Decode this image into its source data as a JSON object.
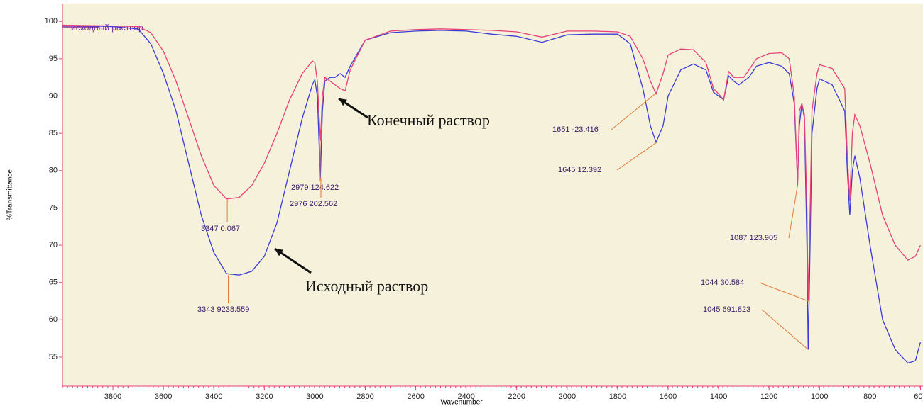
{
  "chart_data": {
    "type": "line",
    "xlabel": "Wavenumber",
    "ylabel": "%Transmittance",
    "legend_text": "исходный раствор",
    "xlim": [
      4000,
      590
    ],
    "ylim": [
      51.1,
      102.4
    ],
    "xticks": [
      3800,
      3600,
      3400,
      3200,
      3000,
      2800,
      2600,
      2400,
      2200,
      2000,
      1800,
      1600,
      1400,
      1200,
      1000,
      800,
      600
    ],
    "yticks": [
      55,
      60,
      65,
      70,
      75,
      80,
      85,
      90,
      95,
      100
    ],
    "x": [
      4000,
      3800,
      3700,
      3650,
      3600,
      3550,
      3500,
      3450,
      3400,
      3350,
      3300,
      3250,
      3200,
      3150,
      3100,
      3050,
      3010,
      3000,
      2990,
      2978,
      2970,
      2960,
      2940,
      2920,
      2900,
      2880,
      2860,
      2800,
      2700,
      2600,
      2500,
      2400,
      2300,
      2200,
      2100,
      2000,
      1900,
      1800,
      1750,
      1700,
      1670,
      1648,
      1620,
      1600,
      1550,
      1500,
      1450,
      1420,
      1400,
      1380,
      1360,
      1340,
      1320,
      1300,
      1280,
      1250,
      1200,
      1150,
      1120,
      1100,
      1087,
      1080,
      1070,
      1060,
      1050,
      1045,
      1040,
      1030,
      1010,
      1000,
      950,
      900,
      890,
      880,
      870,
      860,
      840,
      800,
      750,
      700,
      650,
      620,
      600
    ],
    "series": [
      {
        "name": "Исходный раствор",
        "color": "#3b3bd6",
        "values": [
          99.5,
          99.3,
          99,
          97,
          93,
          88,
          81,
          74,
          69,
          66.2,
          66,
          66.5,
          68.5,
          73,
          80,
          87,
          91.5,
          92.2,
          90,
          79,
          88,
          92,
          92.5,
          92.5,
          93,
          92.5,
          94,
          97.5,
          98.5,
          98.7,
          98.8,
          98.7,
          98.3,
          98,
          97.2,
          98.2,
          98.3,
          98.3,
          97,
          91,
          86,
          83.8,
          86,
          90,
          93.5,
          94.3,
          93.5,
          90.5,
          90,
          89.5,
          92.7,
          92,
          91.5,
          92,
          92.5,
          94,
          94.5,
          94,
          93,
          89,
          78.5,
          86,
          89,
          87,
          70,
          56,
          65,
          85,
          91,
          92.3,
          91.5,
          88,
          80,
          74,
          80,
          82,
          79,
          70,
          60,
          56,
          54.2,
          54.5,
          57
        ]
      },
      {
        "name": "Конечный раствор",
        "color": "#e8407a",
        "values": [
          99.5,
          99.4,
          99.3,
          98.5,
          96,
          92,
          87,
          82,
          78,
          76.2,
          76.4,
          78,
          81,
          85,
          89.5,
          93,
          94.7,
          94.5,
          92,
          84,
          90,
          92.5,
          92,
          91.5,
          91,
          90.7,
          93.5,
          97.5,
          98.7,
          98.9,
          99,
          98.9,
          98.8,
          98.6,
          97.9,
          98.7,
          98.7,
          98.6,
          98,
          95,
          92,
          90.3,
          93,
          95.5,
          96.3,
          96.2,
          94.5,
          91,
          90.3,
          89.5,
          93.3,
          92.5,
          92.5,
          92.5,
          93.5,
          95,
          95.7,
          95.8,
          95,
          90,
          78,
          88,
          89,
          87.5,
          75,
          62.5,
          70,
          88,
          93,
          94.2,
          93.7,
          91,
          82,
          76,
          85,
          87.5,
          86,
          81,
          74,
          70,
          68,
          68.5,
          70
        ]
      }
    ],
    "annotations": [
      {
        "text": "3347  0.067",
        "x": 3347,
        "y": 76.2
      },
      {
        "text": "3343  9238.559",
        "x": 3343,
        "y": 66
      },
      {
        "text": "2979  124.622",
        "x": 2979,
        "y": 84
      },
      {
        "text": "2976  202.562",
        "x": 2976,
        "y": 79
      },
      {
        "text": "1651  -23.416",
        "x": 1651,
        "y": 90.3
      },
      {
        "text": "1645  12.392",
        "x": 1645,
        "y": 83.8
      },
      {
        "text": "1087  123.905",
        "x": 1087,
        "y": 78
      },
      {
        "text": "1044  30.584",
        "x": 1044,
        "y": 62.5
      },
      {
        "text": "1045  691.823",
        "x": 1045,
        "y": 56
      }
    ]
  }
}
